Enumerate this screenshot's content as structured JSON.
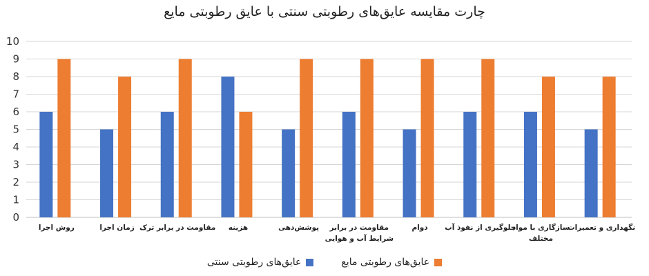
{
  "chart_data": {
    "type": "bar",
    "title": "چارت مقایسه عایق‌های رطوبتی سنتی با عایق رطوبتی مایع",
    "xlabel": "",
    "ylabel": "",
    "ylim": [
      0,
      10
    ],
    "yticks": [
      0,
      1,
      2,
      3,
      4,
      5,
      6,
      7,
      8,
      9,
      10
    ],
    "grid": true,
    "legend_position": "bottom",
    "categories": [
      [
        "روش اجرا"
      ],
      [
        "زمان اجرا"
      ],
      [
        "مقاومت در برابر ترک"
      ],
      [
        "هزینه"
      ],
      [
        "پوشش‌دهی"
      ],
      [
        "مقاومت در برابر",
        "شرایط آب و هوایی"
      ],
      [
        "دوام"
      ],
      [
        "جلوگیری از نفوذ آب"
      ],
      [
        "سازگاری با مواد",
        "مختلف"
      ],
      [
        "نگهداری و تعمیرات"
      ]
    ],
    "series": [
      {
        "name": "عایق‌های رطوبتی سنتی",
        "color": "#4472C4",
        "values": [
          6,
          5,
          6,
          8,
          5,
          6,
          5,
          6,
          6,
          5
        ]
      },
      {
        "name": "عایق‌های رطوبتی مایع",
        "color": "#ED7D31",
        "values": [
          9,
          8,
          9,
          6,
          9,
          9,
          9,
          9,
          8,
          8
        ]
      }
    ]
  }
}
